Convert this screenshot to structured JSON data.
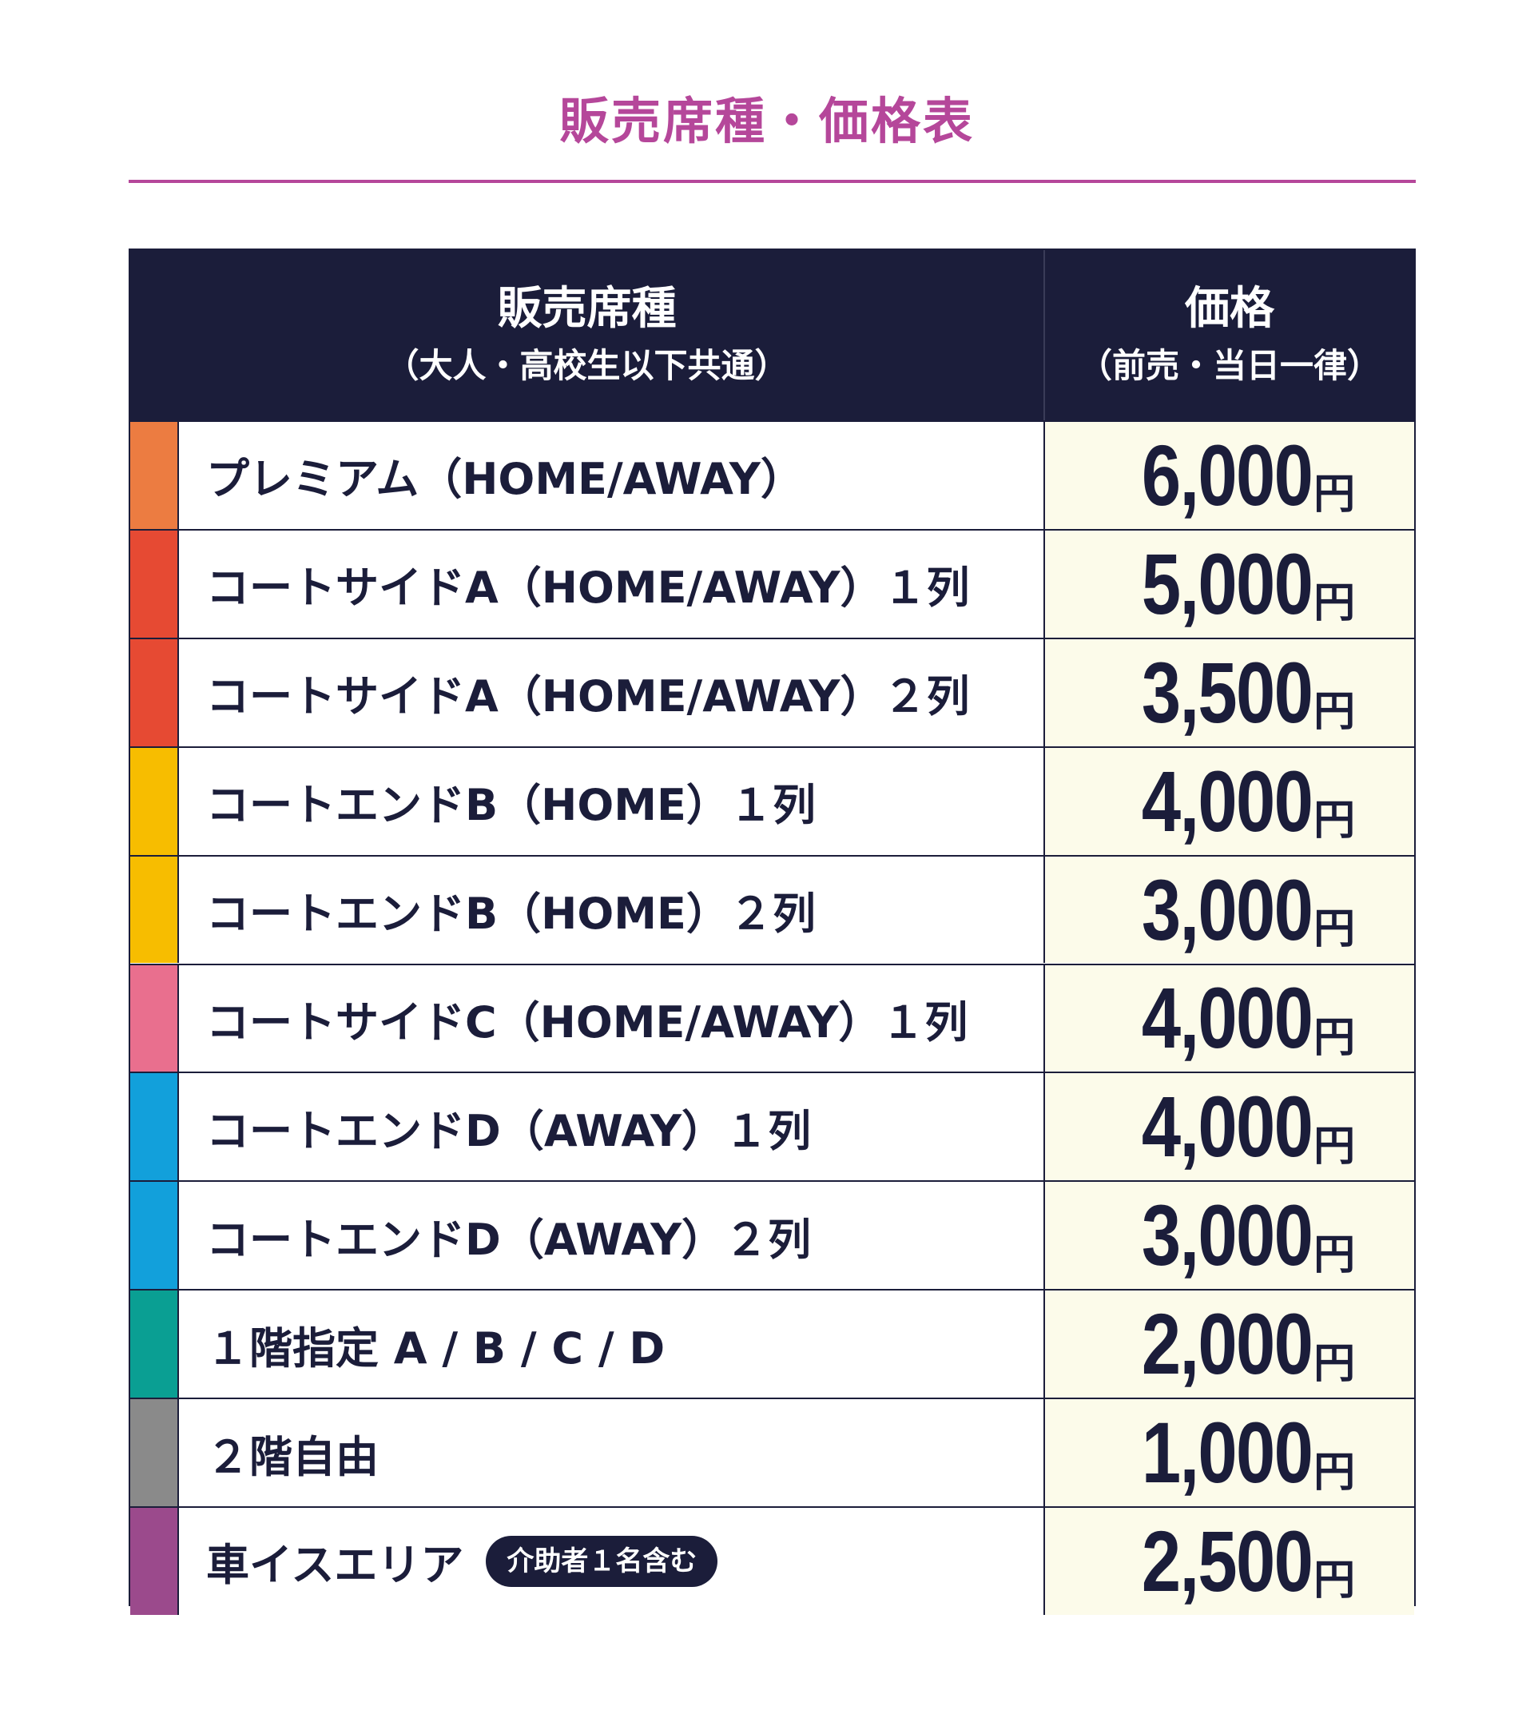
{
  "page_title": "販売席種・価格表",
  "table": {
    "header": {
      "seat_label": "販売席種",
      "seat_sub": "（大人・高校生以下共通）",
      "price_label": "価格",
      "price_sub": "（前売・当日一律）"
    },
    "currency": "円",
    "rows": [
      {
        "label": "プレミアム（HOME/AWAY）",
        "price": "6,000",
        "color": "#ec7c41"
      },
      {
        "label": "コートサイドA（HOME/AWAY）１列",
        "price": "5,000",
        "color": "#e64a33"
      },
      {
        "label": "コートサイドA（HOME/AWAY）２列",
        "price": "3,500",
        "color": "#e64a33"
      },
      {
        "label": "コートエンドB（HOME）１列",
        "price": "4,000",
        "color": "#f7bd00"
      },
      {
        "label": "コートエンドB（HOME）２列",
        "price": "3,000",
        "color": "#f7bd00"
      },
      {
        "label": "コートサイドC（HOME/AWAY）１列",
        "price": "4,000",
        "color": "#e96f8e"
      },
      {
        "label": "コートエンドD（AWAY）１列",
        "price": "4,000",
        "color": "#12a0db"
      },
      {
        "label": "コートエンドD（AWAY）２列",
        "price": "3,000",
        "color": "#12a0db"
      },
      {
        "label": "１階指定 A / B / C / D",
        "price": "2,000",
        "color": "#0a9f93"
      },
      {
        "label": "２階自由",
        "price": "1,000",
        "color": "#8a8a8a"
      },
      {
        "label": "車イスエリア",
        "price": "2,500",
        "color": "#9b4a8c",
        "badge": "介助者１名含む"
      }
    ]
  }
}
